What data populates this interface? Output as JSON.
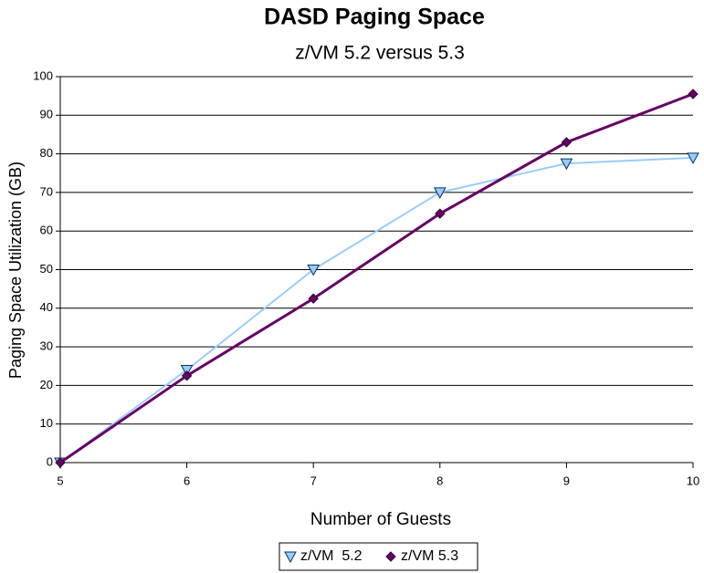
{
  "chart_data": {
    "type": "line",
    "title": "DASD Paging Space",
    "subtitle": "z/VM 5.2 versus 5.3",
    "x_label": "Number of Guests",
    "y_label": "Paging Space Utilization (GB)",
    "x": [
      5,
      6,
      7,
      8,
      9,
      10
    ],
    "series": [
      {
        "name": "z/VM  5.2",
        "color": "#99ccff",
        "marker": "triangle-down",
        "values": [
          0,
          24,
          50,
          70,
          77.5,
          79
        ]
      },
      {
        "name": "z/VM 5.3",
        "color": "#660066",
        "marker": "diamond",
        "values": [
          0,
          22.5,
          42.5,
          64.5,
          83,
          95.5
        ]
      }
    ],
    "xlim": [
      5,
      10
    ],
    "xticks": [
      5,
      6,
      7,
      8,
      9,
      10
    ],
    "ylim": [
      0,
      100
    ],
    "yticks": [
      0,
      10,
      20,
      30,
      40,
      50,
      60,
      70,
      80,
      90,
      100
    ],
    "grid": true,
    "legend": "bottom"
  }
}
